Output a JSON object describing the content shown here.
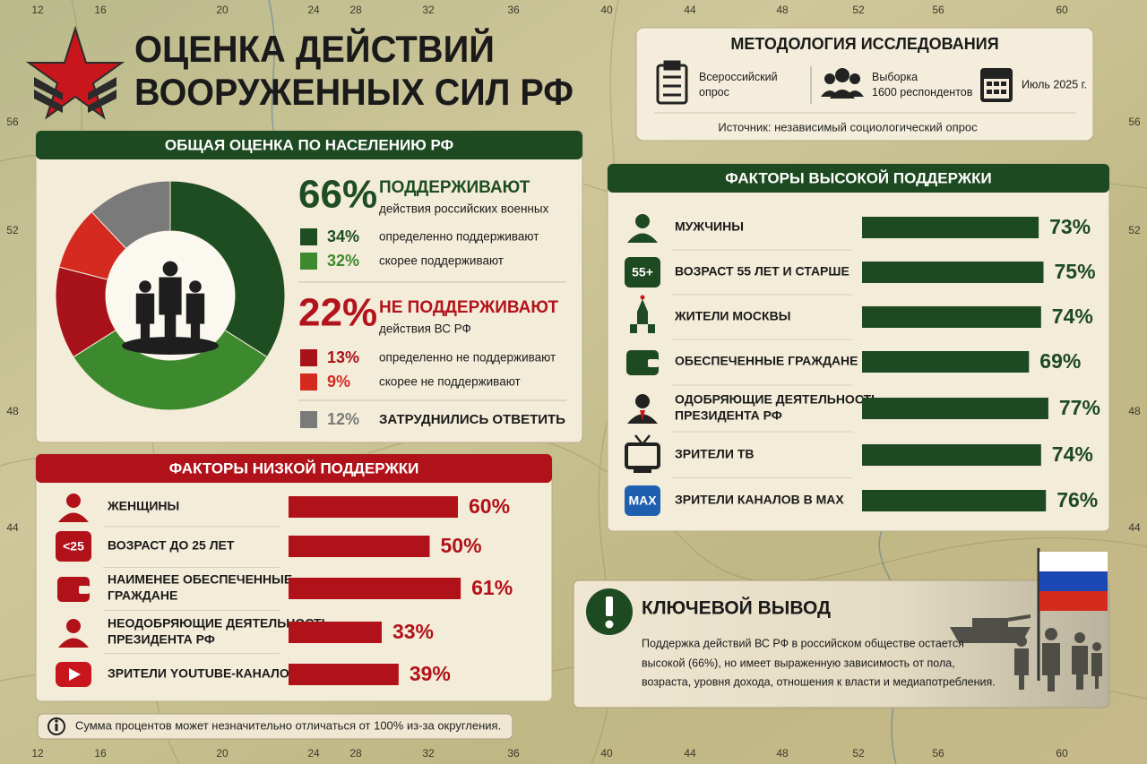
{
  "header": {
    "title_lines": [
      "ОЦЕНКА ДЕЙСТВИЙ",
      "ВООРУЖЕННЫХ СИЛ РФ"
    ]
  },
  "map_grid": {
    "lon": [
      12,
      16,
      20,
      24,
      28,
      32,
      36,
      40,
      44,
      48,
      52,
      56,
      60
    ],
    "lat": [
      56,
      52,
      48,
      44
    ]
  },
  "methodology": {
    "title": "МЕТОДОЛОГИЯ ИССЛЕДОВАНИЯ",
    "items": [
      {
        "lines": [
          "Всероссийский",
          "опрос"
        ]
      },
      {
        "lines": [
          "Выборка",
          "1600 респондентов"
        ]
      },
      {
        "lines": [
          "Июль 2025 г."
        ]
      }
    ],
    "source": "Источник: независимый социологический опрос"
  },
  "overall": {
    "title": "ОБЩАЯ ОЦЕНКА ПО НАСЕЛЕНИЮ РФ",
    "type": "donut",
    "groups": [
      {
        "total": "66%",
        "label": "ПОДДЕРЖИВАЮТ",
        "sub": "действия российских военных",
        "color": "#1f4d22",
        "parts": [
          {
            "value": 34,
            "value_label": "34%",
            "label": "определенно поддерживают",
            "color": "#1f4d22"
          },
          {
            "value": 32,
            "value_label": "32%",
            "label": "скорее поддерживают",
            "color": "#3d8a2e"
          }
        ]
      },
      {
        "total": "22%",
        "label": "НЕ ПОДДЕРЖИВАЮТ",
        "sub": "действия ВС РФ",
        "color": "#b3141c",
        "parts": [
          {
            "value": 13,
            "value_label": "13%",
            "label": "определенно не поддерживают",
            "color": "#a8121a"
          },
          {
            "value": 9,
            "value_label": "9%",
            "label": "скорее не поддерживают",
            "color": "#d52a20"
          }
        ]
      },
      {
        "parts": [
          {
            "value": 12,
            "value_label": "12%",
            "label": "ЗАТРУДНИЛИСЬ ОТВЕТИТЬ",
            "color": "#7a7a7a"
          }
        ]
      }
    ]
  },
  "low_support": {
    "title": "ФАКТОРЫ НИЗКОЙ ПОДДЕРЖКИ",
    "color": "#b1121a",
    "items": [
      {
        "label": [
          "ЖЕНЩИНЫ"
        ],
        "value": 60,
        "value_label": "60%"
      },
      {
        "icon_text": "<25",
        "label": [
          "ВОЗРАСТ ДО 25 ЛЕТ"
        ],
        "value": 50,
        "value_label": "50%"
      },
      {
        "label": [
          "НАИМЕНЕЕ ОБЕСПЕЧЕННЫЕ",
          "ГРАЖДАНЕ"
        ],
        "value": 61,
        "value_label": "61%"
      },
      {
        "label": [
          "НЕОДОБРЯЮЩИЕ ДЕЯТЕЛЬНОСТЬ",
          "ПРЕЗИДЕНТА РФ"
        ],
        "value": 33,
        "value_label": "33%"
      },
      {
        "label": [
          "ЗРИТЕЛИ YOUTUBE-КАНАЛОВ"
        ],
        "value": 39,
        "value_label": "39%"
      }
    ]
  },
  "high_support": {
    "title": "ФАКТОРЫ ВЫСОКОЙ ПОДДЕРЖКИ",
    "color": "#1d4a20",
    "items": [
      {
        "label": [
          "МУЖЧИНЫ"
        ],
        "value": 73,
        "value_label": "73%"
      },
      {
        "icon_text": "55+",
        "label": [
          "ВОЗРАСТ 55 ЛЕТ И СТАРШЕ"
        ],
        "value": 75,
        "value_label": "75%"
      },
      {
        "label": [
          "ЖИТЕЛИ МОСКВЫ"
        ],
        "value": 74,
        "value_label": "74%"
      },
      {
        "label": [
          "ОБЕСПЕЧЕННЫЕ ГРАЖДАНЕ"
        ],
        "value": 69,
        "value_label": "69%"
      },
      {
        "label": [
          "ОДОБРЯЮЩИЕ ДЕЯТЕЛЬНОСТЬ",
          "ПРЕЗИДЕНТА РФ"
        ],
        "value": 77,
        "value_label": "77%"
      },
      {
        "label": [
          "ЗРИТЕЛИ ТВ"
        ],
        "value": 74,
        "value_label": "74%"
      },
      {
        "icon_text": "MAX",
        "label": [
          "ЗРИТЕЛИ КАНАЛОВ В MAX"
        ],
        "value": 76,
        "value_label": "76%"
      }
    ]
  },
  "conclusion": {
    "title": "КЛЮЧЕВОЙ ВЫВОД",
    "lines": [
      "Поддержка действий ВС РФ в российском обществе остается",
      "высокой (66%), но имеет выраженную зависимость от пола,",
      "возраста, уровня дохода, отношения к власти и медиапотребления."
    ]
  },
  "footnote": "Сумма процентов может незначительно отличаться от 100% из-за округления."
}
